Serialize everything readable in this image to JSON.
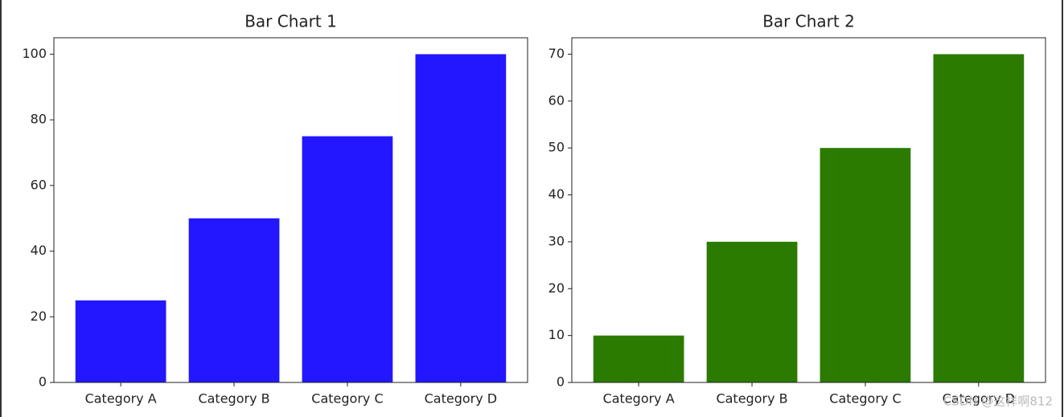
{
  "chart_data": [
    {
      "type": "bar",
      "title": "Bar Chart 1",
      "categories": [
        "Category A",
        "Category B",
        "Category C",
        "Category D"
      ],
      "values": [
        25,
        50,
        75,
        100
      ],
      "color": "#2217ff",
      "ylim": [
        0,
        105
      ],
      "yticks": [
        0,
        20,
        40,
        60,
        80,
        100
      ]
    },
    {
      "type": "bar",
      "title": "Bar Chart 2",
      "categories": [
        "Category A",
        "Category B",
        "Category C",
        "Category D"
      ],
      "values": [
        10,
        30,
        50,
        70
      ],
      "color": "#2a7b00",
      "ylim": [
        0,
        73.5
      ],
      "yticks": [
        0,
        10,
        20,
        30,
        40,
        50,
        60,
        70
      ]
    }
  ],
  "watermark": "CSDN @这样啊812"
}
